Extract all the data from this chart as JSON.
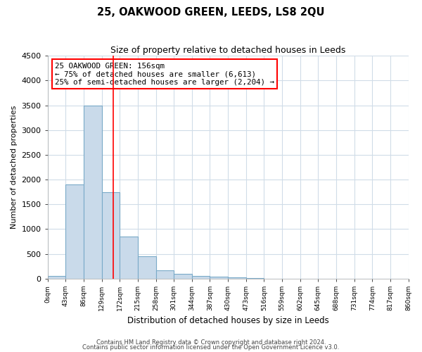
{
  "title": "25, OAKWOOD GREEN, LEEDS, LS8 2QU",
  "subtitle": "Size of property relative to detached houses in Leeds",
  "xlabel": "Distribution of detached houses by size in Leeds",
  "ylabel": "Number of detached properties",
  "bin_edges": [
    0,
    43,
    86,
    129,
    172,
    215,
    258,
    301,
    344,
    387,
    430,
    473,
    516,
    559,
    602,
    645,
    688,
    731,
    774,
    817,
    860
  ],
  "bar_heights": [
    50,
    1900,
    3500,
    1750,
    850,
    450,
    170,
    100,
    55,
    40,
    30,
    15,
    0,
    0,
    0,
    0,
    0,
    0,
    0,
    0
  ],
  "bar_color": "#c9daea",
  "bar_edge_color": "#7aaac8",
  "vline_x": 156,
  "vline_color": "red",
  "ylim": [
    0,
    4500
  ],
  "yticks": [
    0,
    500,
    1000,
    1500,
    2000,
    2500,
    3000,
    3500,
    4000,
    4500
  ],
  "tick_labels": [
    "0sqm",
    "43sqm",
    "86sqm",
    "129sqm",
    "172sqm",
    "215sqm",
    "258sqm",
    "301sqm",
    "344sqm",
    "387sqm",
    "430sqm",
    "473sqm",
    "516sqm",
    "559sqm",
    "602sqm",
    "645sqm",
    "688sqm",
    "731sqm",
    "774sqm",
    "817sqm",
    "860sqm"
  ],
  "annotation_text": "25 OAKWOOD GREEN: 156sqm\n← 75% of detached houses are smaller (6,613)\n25% of semi-detached houses are larger (2,204) →",
  "annotation_box_color": "white",
  "annotation_box_edge": "red",
  "footer1": "Contains HM Land Registry data © Crown copyright and database right 2024.",
  "footer2": "Contains public sector information licensed under the Open Government Licence v3.0.",
  "bg_color": "#ffffff",
  "plot_bg_color": "#ffffff",
  "grid_color": "#d0dce8"
}
